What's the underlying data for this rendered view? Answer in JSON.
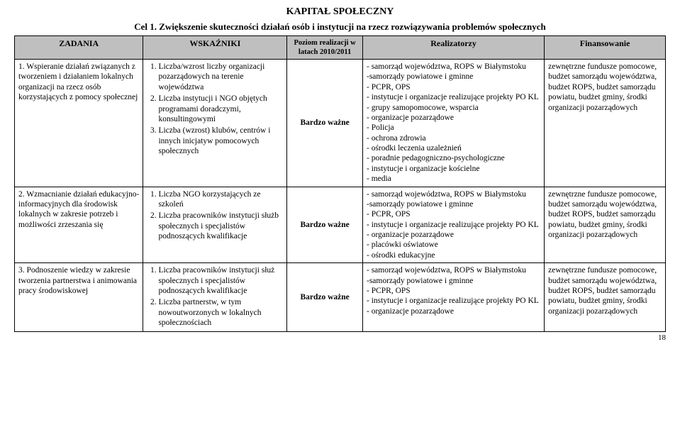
{
  "title": "KAPITAŁ SPOŁECZNY",
  "subtitle": "Cel 1. Zwiększenie skuteczności działań osób i instytucji na rzecz rozwiązywania problemów społecznych",
  "headers": {
    "c1": "ZADANIA",
    "c2": "WSKAŹNIKI",
    "c3": "Poziom realizacji w latach 2010/2011",
    "c4": "Realizatorzy",
    "c5": "Finansowanie"
  },
  "priority": "Bardzo ważne",
  "rows": [
    {
      "task": "1. Wspieranie działań związanych z tworzeniem i działaniem lokalnych organizacji na rzecz osób korzystających z pomocy społecznej",
      "indicators": [
        "Liczba/wzrost liczby organizacji pozarządowych na terenie województwa",
        "Liczba instytucji i NGO objętych programami doradczymi, konsultingowymi",
        "Liczba (wzrost) klubów, centrów i innych inicjatyw pomocowych społecznych"
      ],
      "realizers": [
        "- samorząd województwa, ROPS w Białymstoku",
        "-samorządy powiatowe i gminne",
        "- PCPR, OPS",
        "- instytucje i organizacje realizujące projekty PO KL",
        "- grupy samopomocowe, wsparcia",
        "- organizacje pozarządowe",
        "- Policja",
        "- ochrona zdrowia",
        "- ośrodki leczenia uzależnień",
        "- poradnie pedagogniczno-psychologiczne",
        "- instytucje i organizacje kościelne",
        "- media"
      ],
      "financing": "zewnętrzne fundusze pomocowe, budżet samorządu województwa, budżet ROPS, budżet samorządu powiatu, budżet gminy, środki organizacji pozarządowych"
    },
    {
      "task": "2. Wzmacnianie działań edukacyjno-informacyjnych dla środowisk lokalnych w zakresie potrzeb i możliwości zrzeszania się",
      "indicators": [
        "Liczba NGO korzystających ze szkoleń",
        "Liczba pracowników instytucji służb społecznych i specjalistów podnoszących kwalifikacje"
      ],
      "realizers": [
        "- samorząd województwa, ROPS w Białymstoku",
        "-samorządy powiatowe i gminne",
        "- PCPR, OPS",
        "- instytucje i organizacje realizujące projekty PO KL",
        "- organizacje pozarządowe",
        "- placówki oświatowe",
        "- ośrodki edukacyjne"
      ],
      "financing": "zewnętrzne fundusze pomocowe, budżet samorządu województwa, budżet ROPS, budżet samorządu powiatu, budżet gminy, środki organizacji pozarządowych"
    },
    {
      "task": "3. Podnoszenie wiedzy w zakresie tworzenia partnerstwa i animowania pracy środowiskowej",
      "indicators": [
        "Liczba pracowników instytucji służ społecznych i specjalistów podnoszących kwalifikacje",
        "Liczba partnerstw, w tym nowoutworzonych w lokalnych społecznościach"
      ],
      "realizers": [
        "- samorząd województwa, ROPS w Białymstoku",
        "-samorządy powiatowe i gminne",
        "- PCPR, OPS",
        "- instytucje i organizacje realizujące projekty PO KL",
        "- organizacje pozarządowe"
      ],
      "financing": "zewnętrzne fundusze pomocowe, budżet samorządu województwa, budżet ROPS, budżet samorządu powiatu, budżet gminy, środki organizacji pozarządowych"
    }
  ],
  "page_number": "18"
}
